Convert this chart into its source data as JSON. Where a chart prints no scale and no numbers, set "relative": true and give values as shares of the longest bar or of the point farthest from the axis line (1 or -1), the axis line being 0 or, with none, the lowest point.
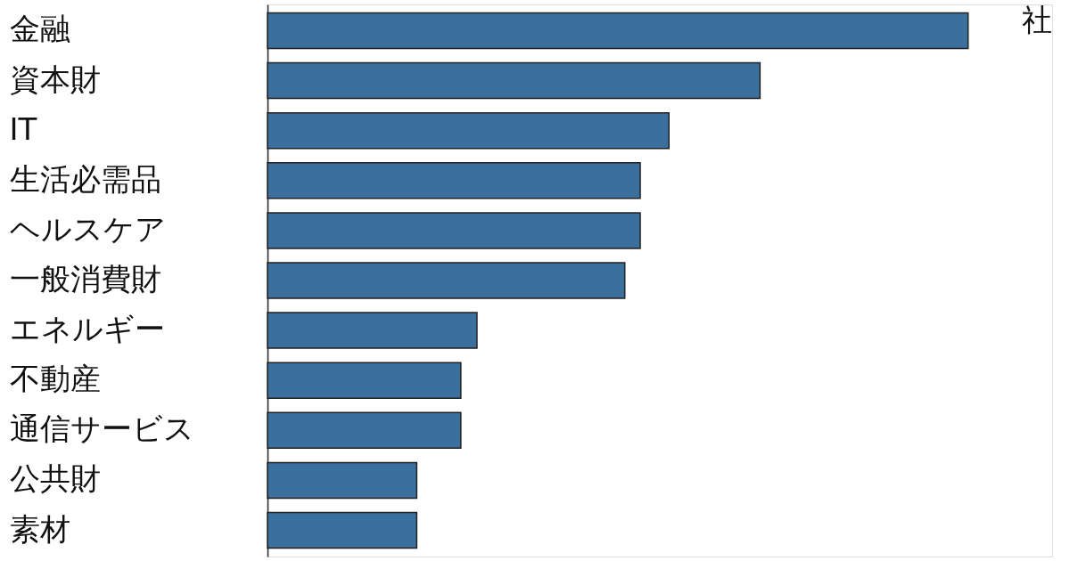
{
  "chart_data": {
    "type": "bar",
    "orientation": "horizontal",
    "relative": true,
    "color": "#3b6f9e",
    "categories": [
      "金融",
      "資本財",
      "IT",
      "生活必需品",
      "ヘルスケア",
      "一般消費財",
      "エネルギー",
      "不動産",
      "通信サービス",
      "公共財",
      "素材"
    ],
    "values": [
      1,
      0.703,
      0.573,
      0.532,
      0.532,
      0.51,
      0.299,
      0.276,
      0.276,
      0.213,
      0.213
    ],
    "annotations": [
      "社"
    ]
  }
}
